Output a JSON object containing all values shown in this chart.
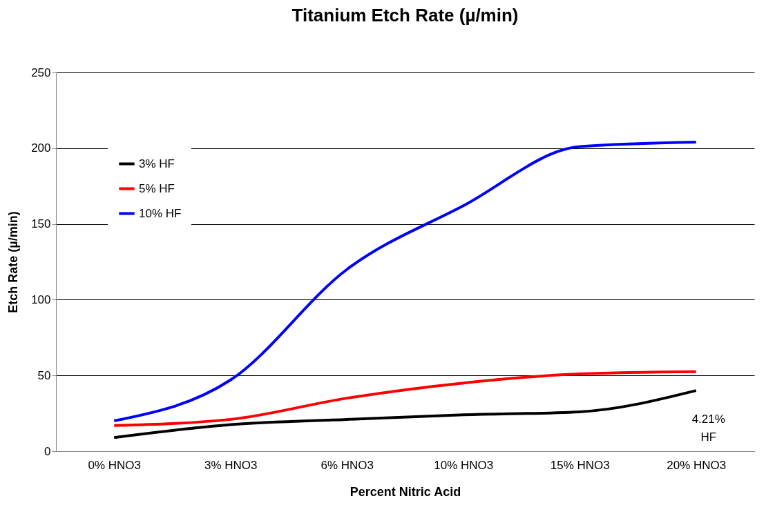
{
  "chart_data": {
    "type": "line",
    "title": "Titanium Etch Rate (µ/min)",
    "xlabel": "Percent Nitric Acid",
    "ylabel": "Etch Rate (µ/min)",
    "categories": [
      "0% HNO3",
      "3% HNO3",
      "6% HNO3",
      "10% HNO3",
      "15% HNO3",
      "20% HNO3"
    ],
    "series": [
      {
        "name": "3% HF",
        "color": "#000000",
        "values": [
          9,
          17.5,
          21,
          24,
          26,
          40
        ]
      },
      {
        "name": "5% HF",
        "color": "#ff0000",
        "values": [
          17,
          21,
          35,
          45,
          51,
          52.5
        ]
      },
      {
        "name": "10% HF",
        "color": "#0000ff",
        "values": [
          20,
          47,
          120,
          162,
          201,
          204
        ]
      }
    ],
    "ylim": [
      0,
      250
    ],
    "yticks": [
      0,
      50,
      100,
      150,
      200,
      250
    ],
    "grid": "y",
    "legend": "top left",
    "annotations": [
      {
        "text": "4.21% HF",
        "x": "20% HNO3",
        "y": 40
      }
    ]
  }
}
